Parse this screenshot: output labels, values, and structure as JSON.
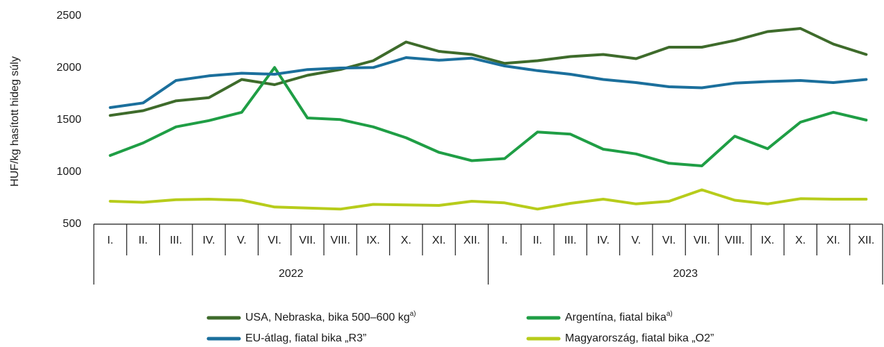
{
  "chart_data": {
    "type": "line",
    "y_label": "HUF/kg hasított hideg súly",
    "categories": [
      "I.",
      "II.",
      "III.",
      "IV.",
      "V.",
      "VI.",
      "VII.",
      "VIII.",
      "IX.",
      "X.",
      "XI.",
      "XII.",
      "I.",
      "II.",
      "III.",
      "IV.",
      "V.",
      "VI.",
      "VII.",
      "VIII.",
      "IX.",
      "X.",
      "XI.",
      "XII."
    ],
    "x_groups": [
      "2022",
      "2023"
    ],
    "ylim": [
      500,
      2500
    ],
    "yticks": [
      500,
      1000,
      1500,
      2000,
      2500
    ],
    "grid": false,
    "series": [
      {
        "name": "USA, Nebraska, bika 500–600 kg",
        "note": "a)",
        "color": "#3e6b2b",
        "values": [
          1545,
          1590,
          1685,
          1715,
          1890,
          1840,
          1930,
          1985,
          2070,
          2250,
          2160,
          2130,
          2045,
          2070,
          2110,
          2130,
          2090,
          2200,
          2200,
          2265,
          2350,
          2380,
          2230,
          2130
        ]
      },
      {
        "name": "Argentína, fiatal bika",
        "note": "a)",
        "color": "#1f9e45",
        "values": [
          1160,
          1280,
          1435,
          1495,
          1575,
          2005,
          1520,
          1505,
          1435,
          1330,
          1190,
          1110,
          1130,
          1385,
          1365,
          1220,
          1175,
          1085,
          1060,
          1345,
          1225,
          1480,
          1575,
          1500
        ]
      },
      {
        "name": "EU-átlag, fiatal bika „R3”",
        "color": "#1b6f9c",
        "values": [
          1620,
          1665,
          1880,
          1925,
          1950,
          1940,
          1985,
          2000,
          2005,
          2100,
          2075,
          2095,
          2020,
          1975,
          1940,
          1890,
          1860,
          1820,
          1810,
          1855,
          1870,
          1880,
          1860,
          1890
        ]
      },
      {
        "name": "Magyarország, fiatal bika „O2”",
        "color": "#b7cc1b",
        "values": [
          720,
          710,
          735,
          740,
          730,
          665,
          655,
          645,
          690,
          685,
          680,
          720,
          705,
          645,
          700,
          740,
          695,
          720,
          830,
          730,
          695,
          745,
          740,
          740
        ]
      }
    ]
  }
}
